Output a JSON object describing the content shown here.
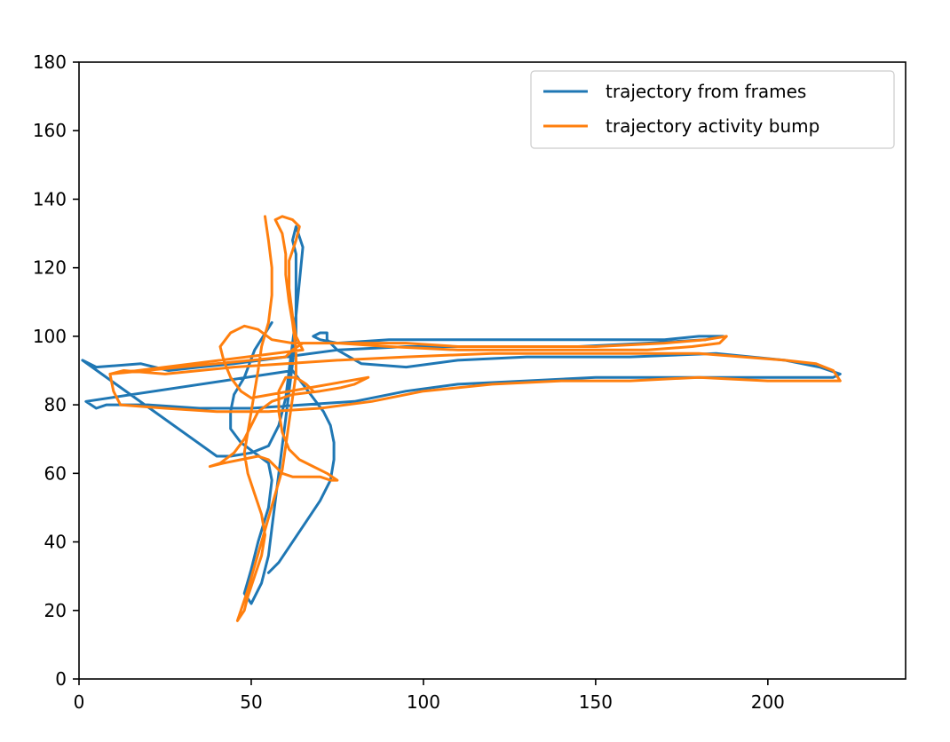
{
  "chart_data": {
    "type": "line",
    "title": "",
    "xlabel": "",
    "ylabel": "",
    "xlim": [
      0,
      240
    ],
    "ylim": [
      0,
      180
    ],
    "xticks": [
      0,
      50,
      100,
      150,
      200
    ],
    "yticks": [
      0,
      20,
      40,
      60,
      80,
      100,
      120,
      140,
      160,
      180
    ],
    "grid": false,
    "legend_position": "top-right",
    "series": [
      {
        "name": "trajectory from frames",
        "color": "#1f77b4",
        "points": [
          [
            56,
            104
          ],
          [
            51,
            96
          ],
          [
            48,
            88
          ],
          [
            45,
            83
          ],
          [
            44,
            78
          ],
          [
            44,
            73
          ],
          [
            47,
            69
          ],
          [
            51,
            66
          ],
          [
            55,
            63
          ],
          [
            56,
            58
          ],
          [
            55,
            50
          ],
          [
            52,
            40
          ],
          [
            50,
            32
          ],
          [
            48,
            25
          ],
          [
            50,
            22
          ],
          [
            53,
            28
          ],
          [
            55,
            36
          ],
          [
            56,
            44
          ],
          [
            57,
            52
          ],
          [
            58,
            60
          ],
          [
            59,
            68
          ],
          [
            60,
            76
          ],
          [
            61,
            84
          ],
          [
            62,
            92
          ],
          [
            63,
            100
          ],
          [
            63,
            108
          ],
          [
            63,
            116
          ],
          [
            63,
            124
          ],
          [
            62,
            128
          ],
          [
            63,
            132
          ],
          [
            65,
            126
          ],
          [
            64,
            116
          ],
          [
            63,
            106
          ],
          [
            62,
            98
          ],
          [
            61,
            90
          ],
          [
            60,
            82
          ],
          [
            58,
            74
          ],
          [
            55,
            68
          ],
          [
            50,
            66
          ],
          [
            44,
            65
          ],
          [
            40,
            65
          ],
          [
            1,
            93
          ],
          [
            5,
            91
          ],
          [
            18,
            92
          ],
          [
            26,
            90
          ],
          [
            35,
            91
          ],
          [
            45,
            92
          ],
          [
            60,
            94
          ],
          [
            75,
            96
          ],
          [
            95,
            97
          ],
          [
            120,
            97
          ],
          [
            145,
            97
          ],
          [
            165,
            98
          ],
          [
            182,
            99
          ],
          [
            187,
            100
          ],
          [
            180,
            100
          ],
          [
            170,
            99
          ],
          [
            150,
            99
          ],
          [
            130,
            99
          ],
          [
            110,
            99
          ],
          [
            90,
            99
          ],
          [
            75,
            98
          ],
          [
            70,
            99
          ],
          [
            68,
            100
          ],
          [
            70,
            101
          ],
          [
            72,
            101
          ],
          [
            72,
            99
          ],
          [
            75,
            96
          ],
          [
            82,
            92
          ],
          [
            95,
            91
          ],
          [
            110,
            93
          ],
          [
            130,
            94
          ],
          [
            160,
            94
          ],
          [
            185,
            95
          ],
          [
            205,
            93
          ],
          [
            215,
            91
          ],
          [
            221,
            89
          ],
          [
            219,
            88
          ],
          [
            210,
            88
          ],
          [
            190,
            88
          ],
          [
            170,
            88
          ],
          [
            150,
            88
          ],
          [
            130,
            87
          ],
          [
            110,
            86
          ],
          [
            95,
            84
          ],
          [
            80,
            81
          ],
          [
            65,
            80
          ],
          [
            50,
            79
          ],
          [
            35,
            79
          ],
          [
            20,
            80
          ],
          [
            8,
            80
          ],
          [
            5,
            79
          ],
          [
            2,
            81
          ],
          [
            62,
            90
          ],
          [
            65,
            86
          ],
          [
            68,
            82
          ],
          [
            71,
            78
          ],
          [
            73,
            74
          ],
          [
            74,
            69
          ],
          [
            74,
            64
          ],
          [
            73,
            58
          ],
          [
            70,
            52
          ],
          [
            66,
            46
          ],
          [
            62,
            40
          ],
          [
            58,
            34
          ],
          [
            55,
            31
          ]
        ]
      },
      {
        "name": "trajectory activity bump",
        "color": "#ff7f0e",
        "points": [
          [
            54,
            135
          ],
          [
            55,
            128
          ],
          [
            56,
            120
          ],
          [
            56,
            112
          ],
          [
            55,
            104
          ],
          [
            53,
            97
          ],
          [
            52,
            90
          ],
          [
            51,
            84
          ],
          [
            50,
            78
          ],
          [
            49,
            72
          ],
          [
            48,
            66
          ],
          [
            49,
            60
          ],
          [
            51,
            54
          ],
          [
            53,
            48
          ],
          [
            54,
            42
          ],
          [
            53,
            36
          ],
          [
            51,
            30
          ],
          [
            49,
            24
          ],
          [
            48,
            20
          ],
          [
            46,
            17
          ],
          [
            47,
            20
          ],
          [
            49,
            26
          ],
          [
            51,
            33
          ],
          [
            53,
            40
          ],
          [
            55,
            47
          ],
          [
            57,
            54
          ],
          [
            59,
            61
          ],
          [
            60,
            68
          ],
          [
            61,
            75
          ],
          [
            62,
            82
          ],
          [
            63,
            89
          ],
          [
            63,
            96
          ],
          [
            62,
            104
          ],
          [
            61,
            110
          ],
          [
            60,
            118
          ],
          [
            60,
            124
          ],
          [
            59,
            130
          ],
          [
            57,
            134
          ],
          [
            59,
            135
          ],
          [
            62,
            134
          ],
          [
            64,
            132
          ],
          [
            63,
            128
          ],
          [
            61,
            122
          ],
          [
            61,
            114
          ],
          [
            62,
            106
          ],
          [
            63,
            100
          ],
          [
            65,
            96
          ],
          [
            9,
            89
          ],
          [
            13,
            90
          ],
          [
            25,
            89
          ],
          [
            35,
            90
          ],
          [
            45,
            91
          ],
          [
            60,
            92
          ],
          [
            75,
            93
          ],
          [
            95,
            94
          ],
          [
            120,
            95
          ],
          [
            150,
            95
          ],
          [
            180,
            95
          ],
          [
            205,
            93
          ],
          [
            214,
            92
          ],
          [
            219,
            90
          ],
          [
            221,
            87
          ],
          [
            215,
            87
          ],
          [
            200,
            87
          ],
          [
            180,
            88
          ],
          [
            160,
            87
          ],
          [
            140,
            87
          ],
          [
            120,
            86
          ],
          [
            100,
            84
          ],
          [
            85,
            81
          ],
          [
            70,
            79
          ],
          [
            55,
            78
          ],
          [
            40,
            78
          ],
          [
            25,
            79
          ],
          [
            12,
            80
          ],
          [
            10,
            84
          ],
          [
            9,
            89
          ],
          [
            60,
            94
          ],
          [
            62,
            96
          ],
          [
            65,
            98
          ],
          [
            70,
            98
          ],
          [
            80,
            98
          ],
          [
            95,
            98
          ],
          [
            110,
            97
          ],
          [
            130,
            97
          ],
          [
            150,
            97
          ],
          [
            170,
            98
          ],
          [
            182,
            99
          ],
          [
            188,
            100
          ],
          [
            186,
            98
          ],
          [
            178,
            97
          ],
          [
            165,
            96
          ],
          [
            150,
            96
          ],
          [
            130,
            96
          ],
          [
            110,
            96
          ],
          [
            90,
            97
          ],
          [
            75,
            98
          ],
          [
            62,
            98
          ],
          [
            56,
            99
          ],
          [
            52,
            102
          ],
          [
            48,
            103
          ],
          [
            44,
            101
          ],
          [
            41,
            97
          ],
          [
            42,
            93
          ],
          [
            44,
            88
          ],
          [
            47,
            84
          ],
          [
            50,
            82
          ],
          [
            84,
            88
          ],
          [
            80,
            86
          ],
          [
            76,
            85
          ],
          [
            70,
            84
          ],
          [
            62,
            83
          ],
          [
            56,
            81
          ],
          [
            52,
            78
          ],
          [
            50,
            74
          ],
          [
            48,
            70
          ],
          [
            45,
            66
          ],
          [
            41,
            63
          ],
          [
            38,
            62
          ],
          [
            42,
            63
          ],
          [
            47,
            64
          ],
          [
            52,
            65
          ],
          [
            55,
            64
          ],
          [
            57,
            62
          ],
          [
            59,
            60
          ],
          [
            62,
            59
          ],
          [
            66,
            59
          ],
          [
            70,
            59
          ],
          [
            73,
            58
          ],
          [
            75,
            58
          ],
          [
            72,
            60
          ],
          [
            68,
            62
          ],
          [
            64,
            64
          ],
          [
            61,
            67
          ],
          [
            59,
            72
          ],
          [
            58,
            78
          ],
          [
            58,
            84
          ],
          [
            60,
            88
          ],
          [
            63,
            88
          ],
          [
            66,
            86
          ],
          [
            68,
            84
          ]
        ]
      }
    ]
  }
}
